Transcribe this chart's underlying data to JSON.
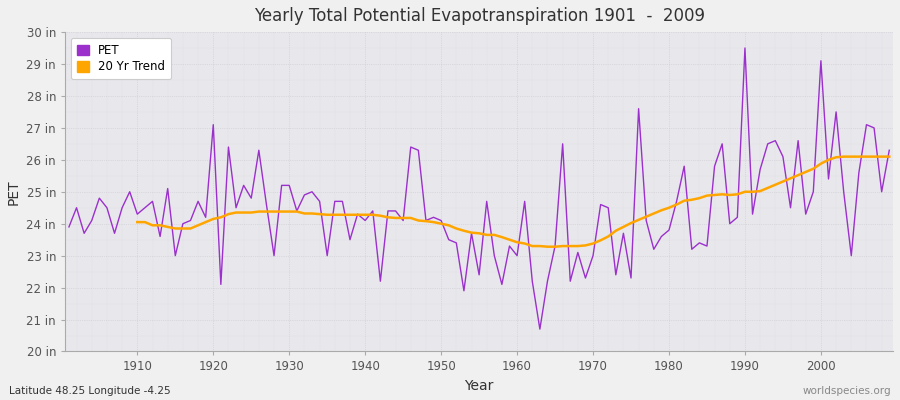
{
  "title": "Yearly Total Potential Evapotranspiration 1901  -  2009",
  "xlabel": "Year",
  "ylabel": "PET",
  "subtitle": "Latitude 48.25 Longitude -4.25",
  "watermark": "worldspecies.org",
  "ylim": [
    20,
    30
  ],
  "ytick_labels": [
    "20 in",
    "21 in",
    "22 in",
    "23 in",
    "24 in",
    "25 in",
    "26 in",
    "27 in",
    "28 in",
    "29 in",
    "30 in"
  ],
  "ytick_values": [
    20,
    21,
    22,
    23,
    24,
    25,
    26,
    27,
    28,
    29,
    30
  ],
  "pet_color": "#9B30CC",
  "trend_color": "#FFA500",
  "fig_bg_color": "#F0F0F0",
  "plot_bg_color": "#E8E8EC",
  "xticks": [
    1910,
    1920,
    1930,
    1940,
    1950,
    1960,
    1970,
    1980,
    1990,
    2000
  ],
  "years": [
    1901,
    1902,
    1903,
    1904,
    1905,
    1906,
    1907,
    1908,
    1909,
    1910,
    1911,
    1912,
    1913,
    1914,
    1915,
    1916,
    1917,
    1918,
    1919,
    1920,
    1921,
    1922,
    1923,
    1924,
    1925,
    1926,
    1927,
    1928,
    1929,
    1930,
    1931,
    1932,
    1933,
    1934,
    1935,
    1936,
    1937,
    1938,
    1939,
    1940,
    1941,
    1942,
    1943,
    1944,
    1945,
    1946,
    1947,
    1948,
    1949,
    1950,
    1951,
    1952,
    1953,
    1954,
    1955,
    1956,
    1957,
    1958,
    1959,
    1960,
    1961,
    1962,
    1963,
    1964,
    1965,
    1966,
    1967,
    1968,
    1969,
    1970,
    1971,
    1972,
    1973,
    1974,
    1975,
    1976,
    1977,
    1978,
    1979,
    1980,
    1981,
    1982,
    1983,
    1984,
    1985,
    1986,
    1987,
    1988,
    1989,
    1990,
    1991,
    1992,
    1993,
    1994,
    1995,
    1996,
    1997,
    1998,
    1999,
    2000,
    2001,
    2002,
    2003,
    2004,
    2005,
    2006,
    2007,
    2008,
    2009
  ],
  "pet_values": [
    23.9,
    24.5,
    23.7,
    24.1,
    24.8,
    24.5,
    23.7,
    24.5,
    25.0,
    24.3,
    24.5,
    24.7,
    23.6,
    25.1,
    23.0,
    24.0,
    24.1,
    24.7,
    24.2,
    27.1,
    22.1,
    26.4,
    24.5,
    25.2,
    24.8,
    26.3,
    24.6,
    23.0,
    25.2,
    25.2,
    24.4,
    24.9,
    25.0,
    24.7,
    23.0,
    24.7,
    24.7,
    23.5,
    24.3,
    24.1,
    24.4,
    22.2,
    24.4,
    24.4,
    24.1,
    26.4,
    26.3,
    24.1,
    24.2,
    24.1,
    23.5,
    23.4,
    21.9,
    23.7,
    22.4,
    24.7,
    23.0,
    22.1,
    23.3,
    23.0,
    24.7,
    22.2,
    20.7,
    22.2,
    23.3,
    26.5,
    22.2,
    23.1,
    22.3,
    23.0,
    24.6,
    24.5,
    22.4,
    23.7,
    22.3,
    27.6,
    24.1,
    23.2,
    23.6,
    23.8,
    24.7,
    25.8,
    23.2,
    23.4,
    23.3,
    25.8,
    26.5,
    24.0,
    24.2,
    29.5,
    24.3,
    25.7,
    26.5,
    26.6,
    26.1,
    24.5,
    26.6,
    24.3,
    25.0,
    29.1,
    25.4,
    27.5,
    25.0,
    23.0,
    25.6,
    27.1,
    27.0,
    25.0,
    26.3
  ],
  "trend_values": [
    null,
    null,
    null,
    null,
    null,
    null,
    null,
    null,
    null,
    24.05,
    24.05,
    23.95,
    23.95,
    23.9,
    23.85,
    23.85,
    23.85,
    23.95,
    24.05,
    24.15,
    24.2,
    24.3,
    24.35,
    24.35,
    24.35,
    24.38,
    24.38,
    24.38,
    24.38,
    24.38,
    24.38,
    24.32,
    24.32,
    24.3,
    24.28,
    24.28,
    24.28,
    24.28,
    24.28,
    24.28,
    24.28,
    24.25,
    24.2,
    24.18,
    24.18,
    24.18,
    24.1,
    24.08,
    24.05,
    24.0,
    23.95,
    23.85,
    23.78,
    23.72,
    23.7,
    23.65,
    23.65,
    23.58,
    23.5,
    23.42,
    23.38,
    23.3,
    23.3,
    23.28,
    23.28,
    23.3,
    23.3,
    23.3,
    23.32,
    23.38,
    23.48,
    23.6,
    23.78,
    23.9,
    24.02,
    24.12,
    24.22,
    24.32,
    24.42,
    24.5,
    24.6,
    24.72,
    24.75,
    24.8,
    24.88,
    24.9,
    24.92,
    24.9,
    24.92,
    25.0,
    25.0,
    25.02,
    25.12,
    25.22,
    25.32,
    25.42,
    25.52,
    25.62,
    25.72,
    25.88,
    26.0,
    26.08,
    26.1,
    26.1,
    26.1,
    26.1,
    26.1,
    26.1,
    26.1
  ]
}
